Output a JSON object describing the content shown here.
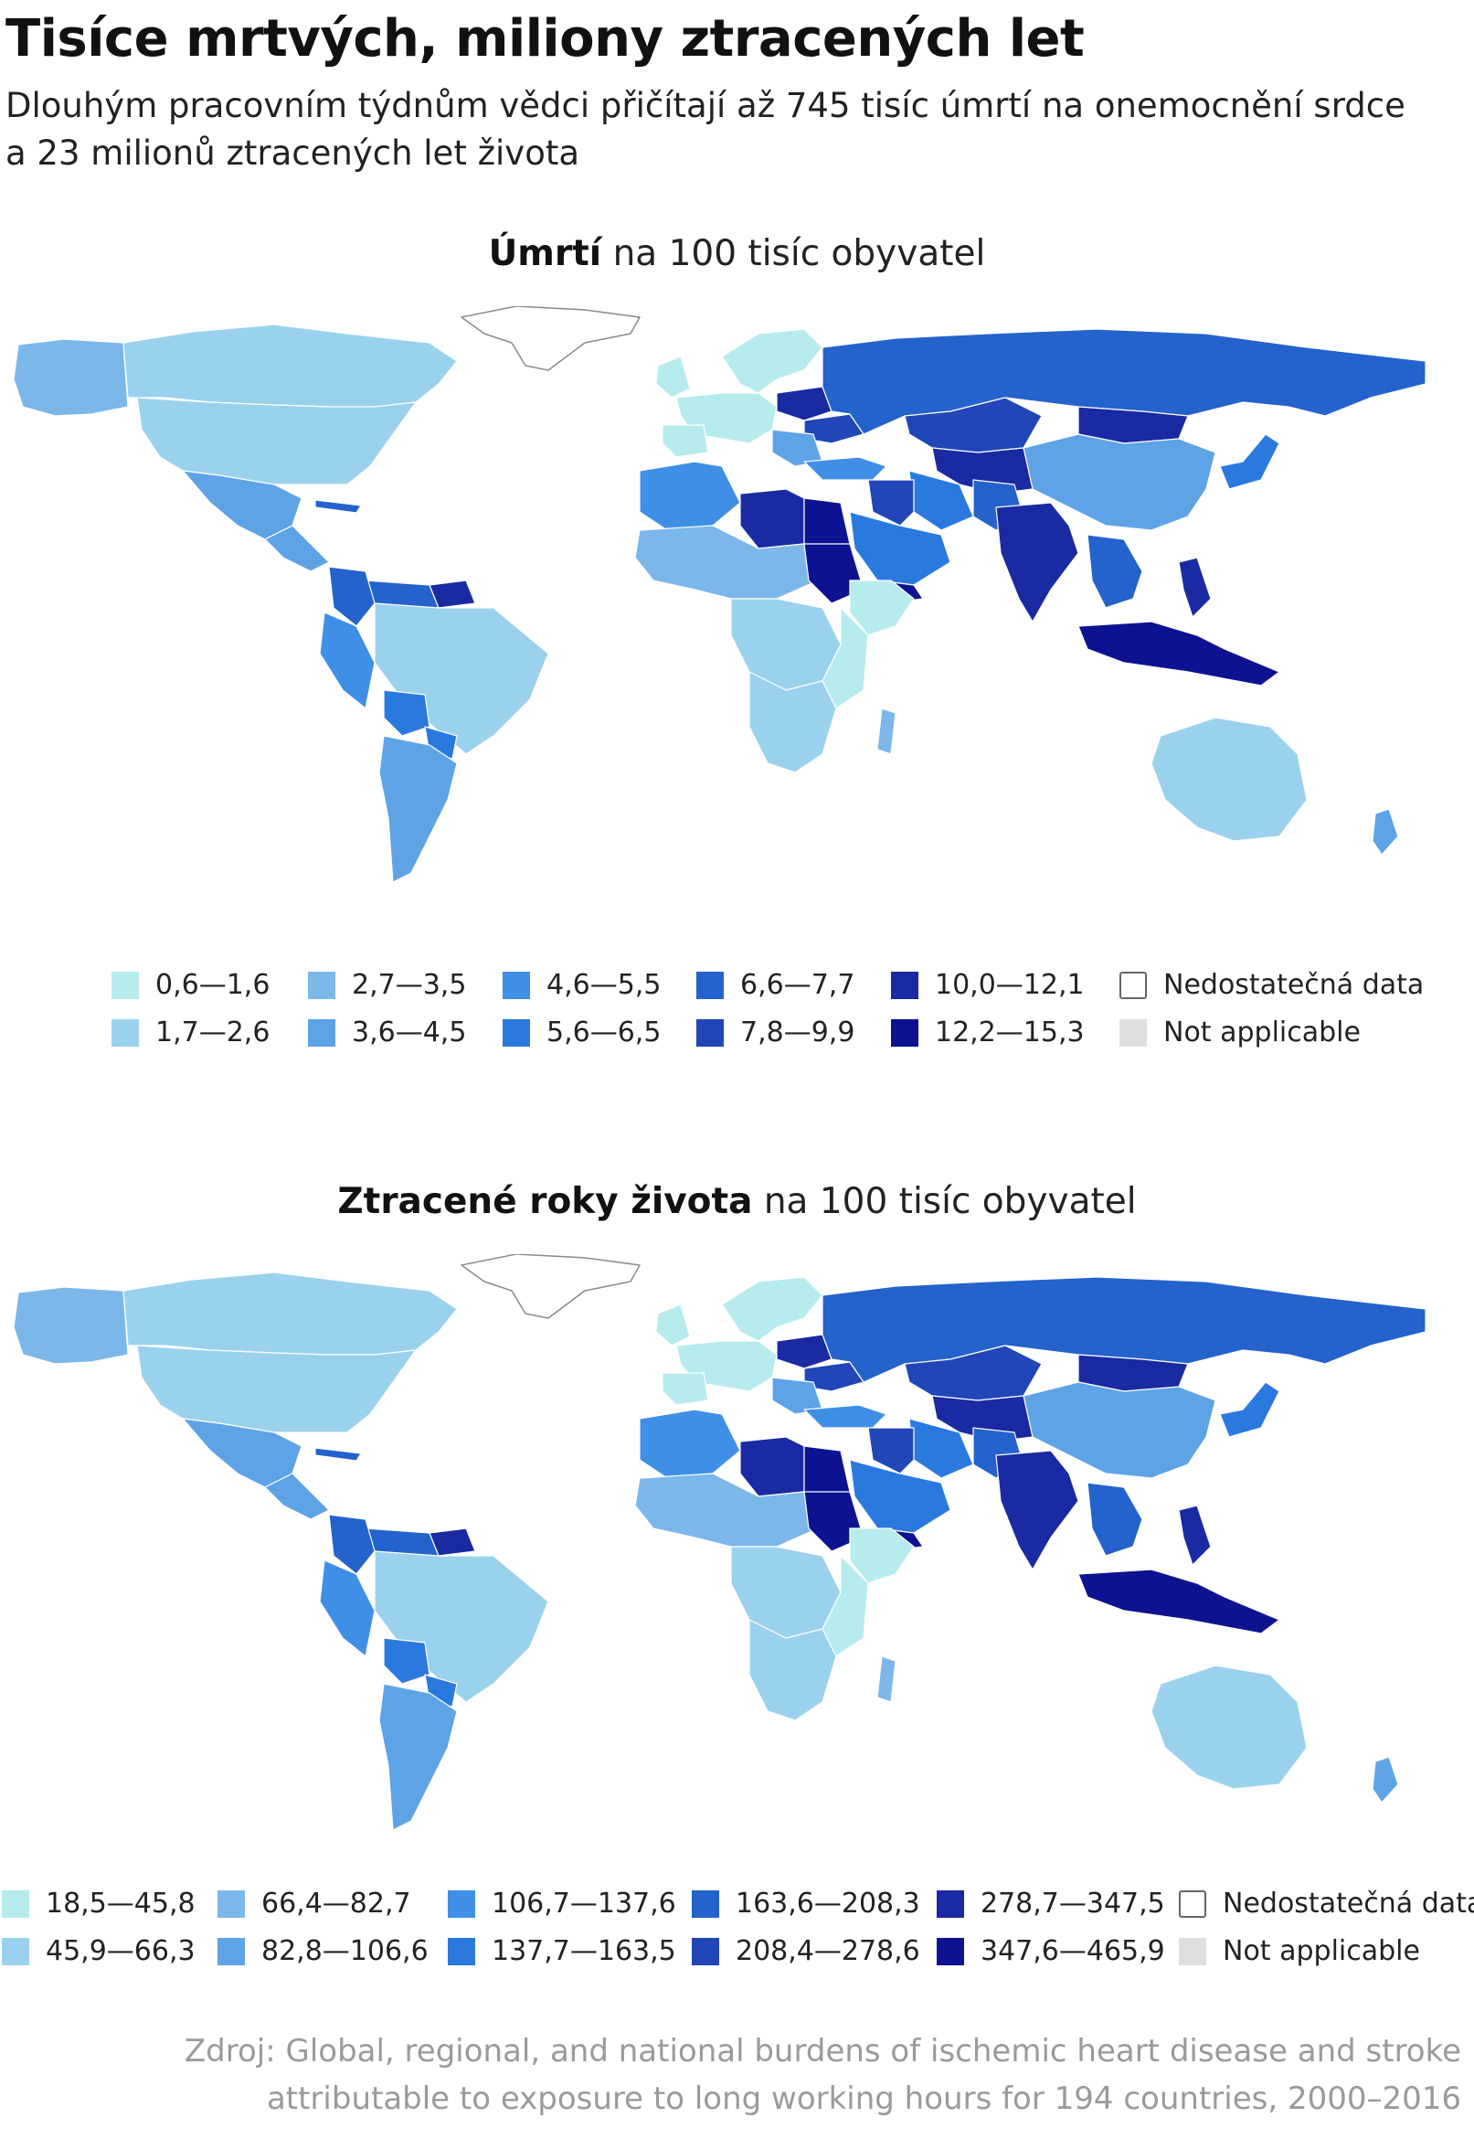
{
  "title": "Tisíce mrtvých, miliony ztracených let",
  "subtitle": "Dlouhým pracovním týdnům vědci přičítají až 745 tisíc úmrtí na onemocnění srdce a 23 milionů ztracených let života",
  "map1": {
    "heading_bold": "Úmrtí",
    "heading_rest": " na 100 tisíc obyvatel",
    "legend": [
      {
        "label": "0,6—1,6",
        "color": "#b7ecee"
      },
      {
        "label": "1,7—2,6",
        "color": "#9ad2ee"
      },
      {
        "label": "2,7—3,5",
        "color": "#7cb7ea"
      },
      {
        "label": "3,6—4,5",
        "color": "#5ea3e6"
      },
      {
        "label": "4,6—5,5",
        "color": "#3f8fe6"
      },
      {
        "label": "5,6—6,5",
        "color": "#2a79df"
      },
      {
        "label": "6,6—7,7",
        "color": "#2462cc"
      },
      {
        "label": "7,8—9,9",
        "color": "#2046b8"
      },
      {
        "label": "10,0—12,1",
        "color": "#1a2aa2"
      },
      {
        "label": "12,2—15,3",
        "color": "#0d1390"
      },
      {
        "label": "Nedostatečná data",
        "color": "#ffffff",
        "outlined": true
      },
      {
        "label": "Not applicable",
        "color": "#dedede"
      }
    ]
  },
  "map2": {
    "heading_bold": "Ztracené roky života",
    "heading_rest": " na 100 tisíc obyvatel",
    "legend": [
      {
        "label": "18,5—45,8",
        "color": "#b7ecee"
      },
      {
        "label": "45,9—66,3",
        "color": "#9ad2ee"
      },
      {
        "label": "66,4—82,7",
        "color": "#7cb7ea"
      },
      {
        "label": "82,8—106,6",
        "color": "#5ea3e6"
      },
      {
        "label": "106,7—137,6",
        "color": "#3f8fe6"
      },
      {
        "label": "137,7—163,5",
        "color": "#2a79df"
      },
      {
        "label": "163,6—208,3",
        "color": "#2462cc"
      },
      {
        "label": "208,4—278,6",
        "color": "#2046b8"
      },
      {
        "label": "278,7—347,5",
        "color": "#1a2aa2"
      },
      {
        "label": "347,6—465,9",
        "color": "#0d1390"
      },
      {
        "label": "Nedostatečná data",
        "color": "#ffffff",
        "outlined": true
      },
      {
        "label": "Not applicable",
        "color": "#dedede"
      }
    ]
  },
  "source": "Zdroj: Global, regional, and national burdens of ischemic heart disease and stroke attributable to exposure to long working hours for 194 countries, 2000–2016"
}
